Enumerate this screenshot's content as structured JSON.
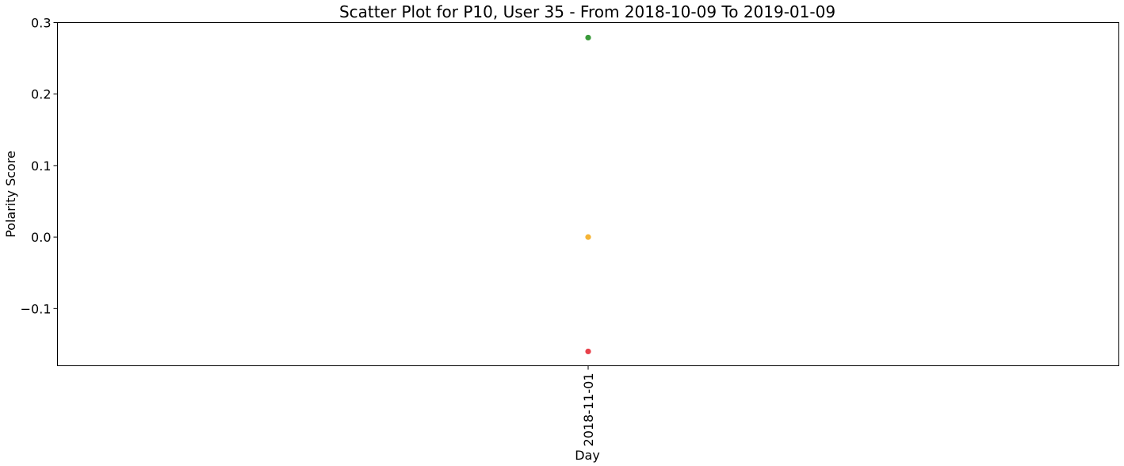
{
  "chart_data": {
    "type": "scatter",
    "title": "Scatter Plot for P10, User 35 - From 2018-10-09 To 2019-01-09",
    "xlabel": "Day",
    "ylabel": "Polarity Score",
    "x_categories": [
      "2018-11-01"
    ],
    "ylim": [
      -0.18,
      0.3
    ],
    "yticks": [
      0.3,
      0.2,
      0.1,
      0.0,
      -0.1
    ],
    "ytick_labels": [
      "0.3",
      "0.2",
      "0.1",
      "0.0",
      "−0.1"
    ],
    "grid": false,
    "points": [
      {
        "x": "2018-11-01",
        "y": 0.279,
        "color": "#3a9a3a",
        "sentiment": "positive"
      },
      {
        "x": "2018-11-01",
        "y": 0.0,
        "color": "#f5b435",
        "sentiment": "neutral"
      },
      {
        "x": "2018-11-01",
        "y": -0.16,
        "color": "#e8414a",
        "sentiment": "negative"
      }
    ]
  }
}
